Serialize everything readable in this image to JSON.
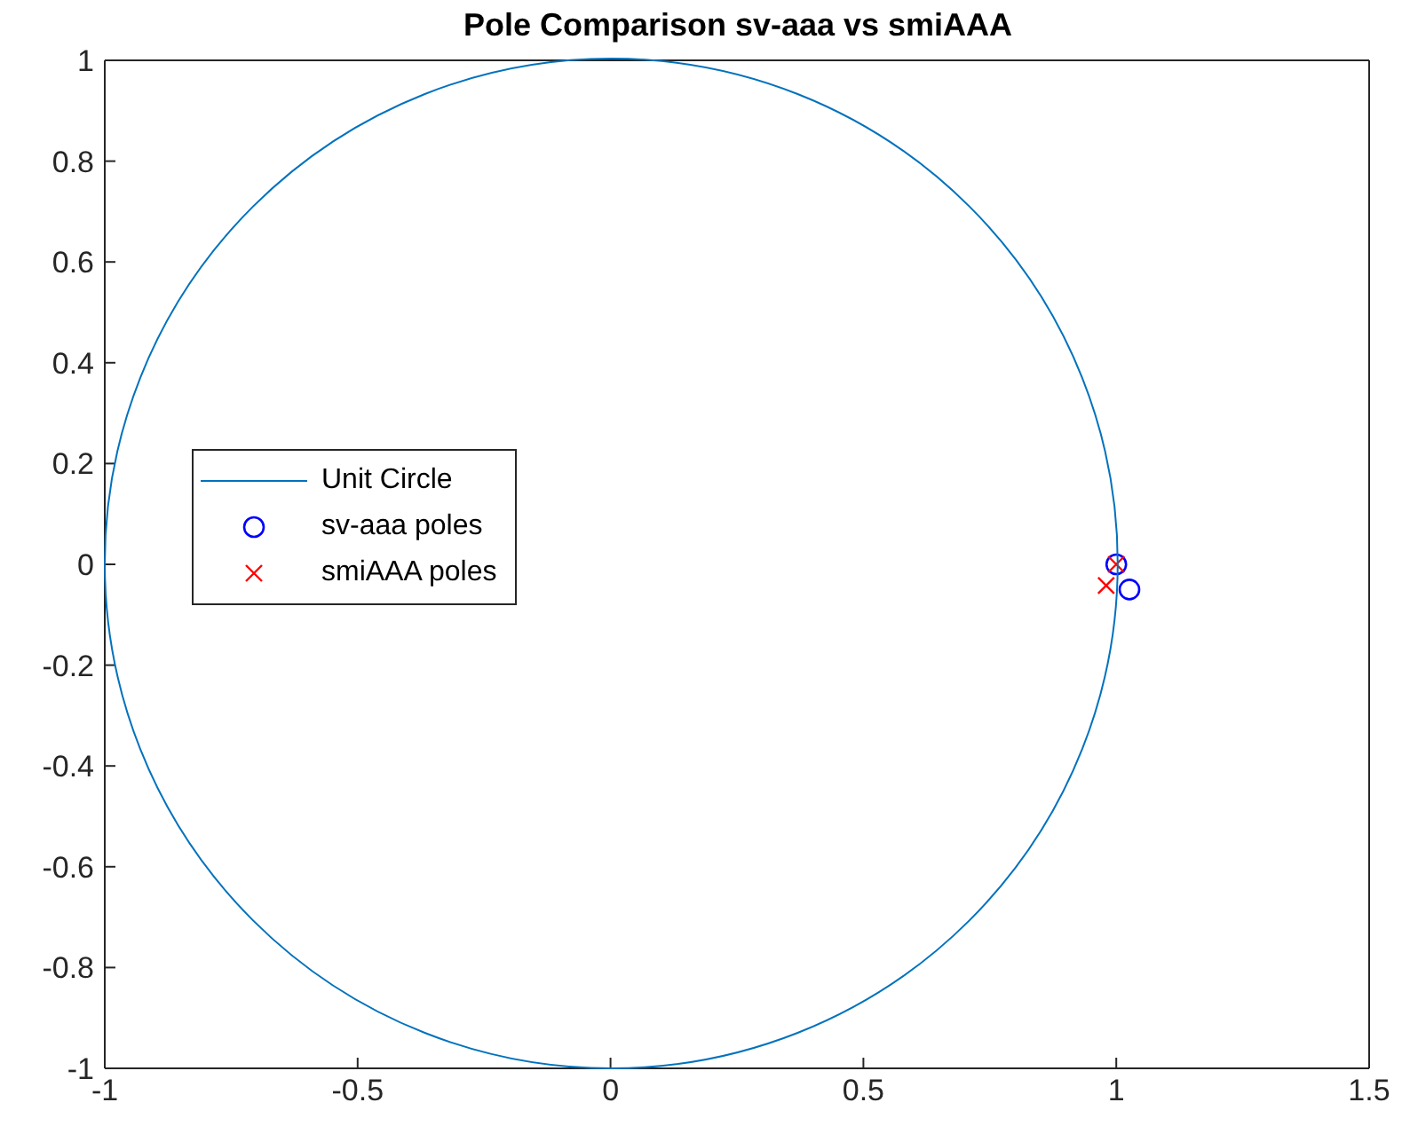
{
  "chart_data": {
    "type": "scatter",
    "title": "Pole Comparison sv-aaa vs smiAAA",
    "xlim": [
      -1,
      1.5
    ],
    "xticks": [
      -1,
      {
        "value": -0.5,
        "label": "-0.5"
      },
      0,
      {
        "value": 0.5,
        "label": "0.5"
      },
      1,
      {
        "value": 1.5,
        "label": "1.5"
      }
    ],
    "ylim": [
      -1,
      1
    ],
    "yticks": [
      -1,
      {
        "value": -0.8,
        "label": "-0.8"
      },
      {
        "value": -0.6,
        "label": "-0.6"
      },
      {
        "value": -0.4,
        "label": "-0.4"
      },
      {
        "value": -0.2,
        "label": "-0.2"
      },
      0,
      {
        "value": 0.2,
        "label": "0.2"
      },
      {
        "value": 0.4,
        "label": "0.4"
      },
      {
        "value": 0.6,
        "label": "0.6"
      },
      {
        "value": 0.8,
        "label": "0.8"
      },
      1
    ],
    "legend": "left",
    "annotations": [
      "Unit Circle"
    ],
    "series": [
      {
        "name": "sv-aaa poles",
        "color": "#0000ff",
        "marker": "circle",
        "x": [
          1,
          1.026
        ],
        "values": [
          0,
          -0.05
        ]
      },
      {
        "name": "smiAAA poles",
        "color": "#ff0000",
        "marker": "cross",
        "x": [
          1,
          0.98
        ],
        "values": [
          0,
          -0.042
        ]
      }
    ]
  }
}
